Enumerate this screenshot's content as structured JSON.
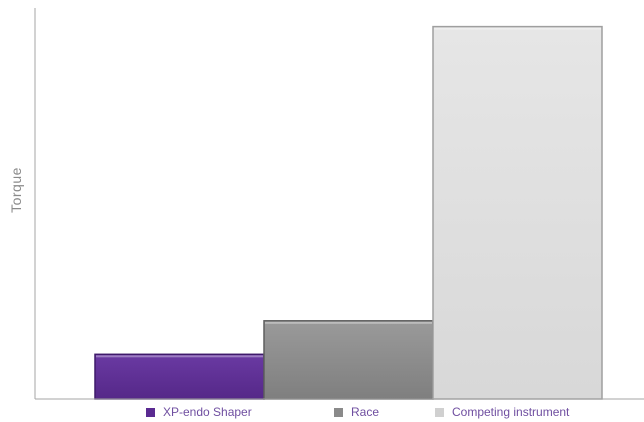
{
  "chart_data": {
    "type": "bar",
    "title": "",
    "xlabel": "",
    "ylabel": "Torque",
    "categories": [
      "XP-endo Shaper",
      "Race",
      "Competing instrument"
    ],
    "values": [
      12,
      21,
      100
    ],
    "ylim": [
      0,
      105
    ],
    "grid": false,
    "legend_position": "bottom",
    "legend": [
      "XP-endo Shaper",
      "Race",
      "Competing instrument"
    ],
    "colors": [
      "#5a2a91",
      "#8a8a8a",
      "#dcdcdc"
    ]
  }
}
